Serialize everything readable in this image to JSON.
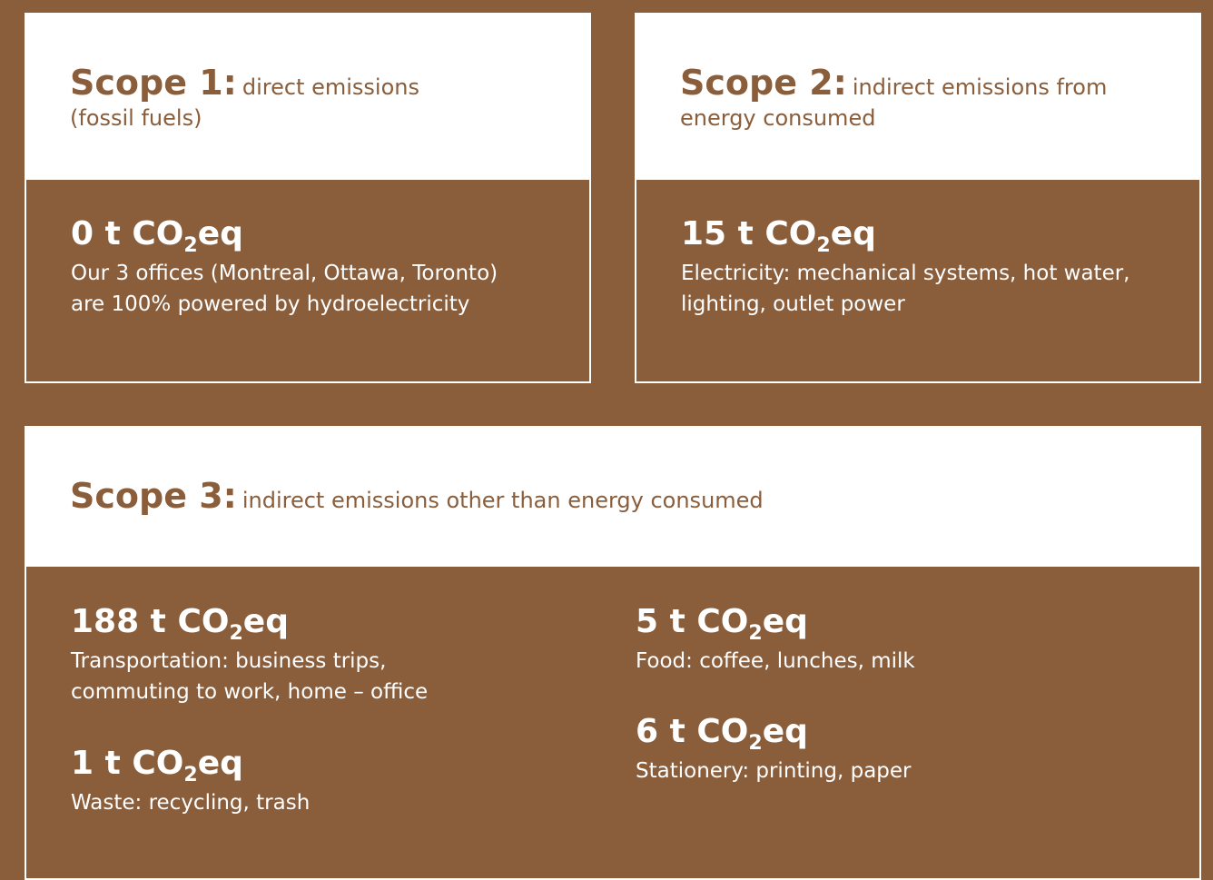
{
  "unit": {
    "main": "CO",
    "sub": "2",
    "suffix": "eq"
  },
  "scopes": [
    {
      "label": "Scope 1:",
      "description_lines": [
        "direct emissions",
        "(fossil fuels)"
      ],
      "items": [
        {
          "amount": "0 t",
          "description_lines": [
            "Our 3 offices (Montreal, Ottawa, Toronto)",
            "are 100% powered by hydroelectricity"
          ]
        }
      ]
    },
    {
      "label": "Scope 2:",
      "description_lines": [
        "indirect emissions from",
        "energy consumed"
      ],
      "items": [
        {
          "amount": "15 t",
          "description_lines": [
            "Electricity: mechanical systems, hot water,",
            "lighting, outlet power"
          ]
        }
      ]
    },
    {
      "label": "Scope 3:",
      "description_lines": [
        "indirect emissions other than energy consumed"
      ],
      "items": [
        {
          "amount": "188 t",
          "description_lines": [
            "Transportation: business trips,",
            "commuting to work, home – office"
          ]
        },
        {
          "amount": "1 t",
          "description_lines": [
            "Waste: recycling, trash"
          ]
        },
        {
          "amount": "5 t",
          "description_lines": [
            "Food: coffee, lunches, milk"
          ]
        },
        {
          "amount": "6 t",
          "description_lines": [
            "Stationery: printing, paper"
          ]
        }
      ]
    }
  ]
}
